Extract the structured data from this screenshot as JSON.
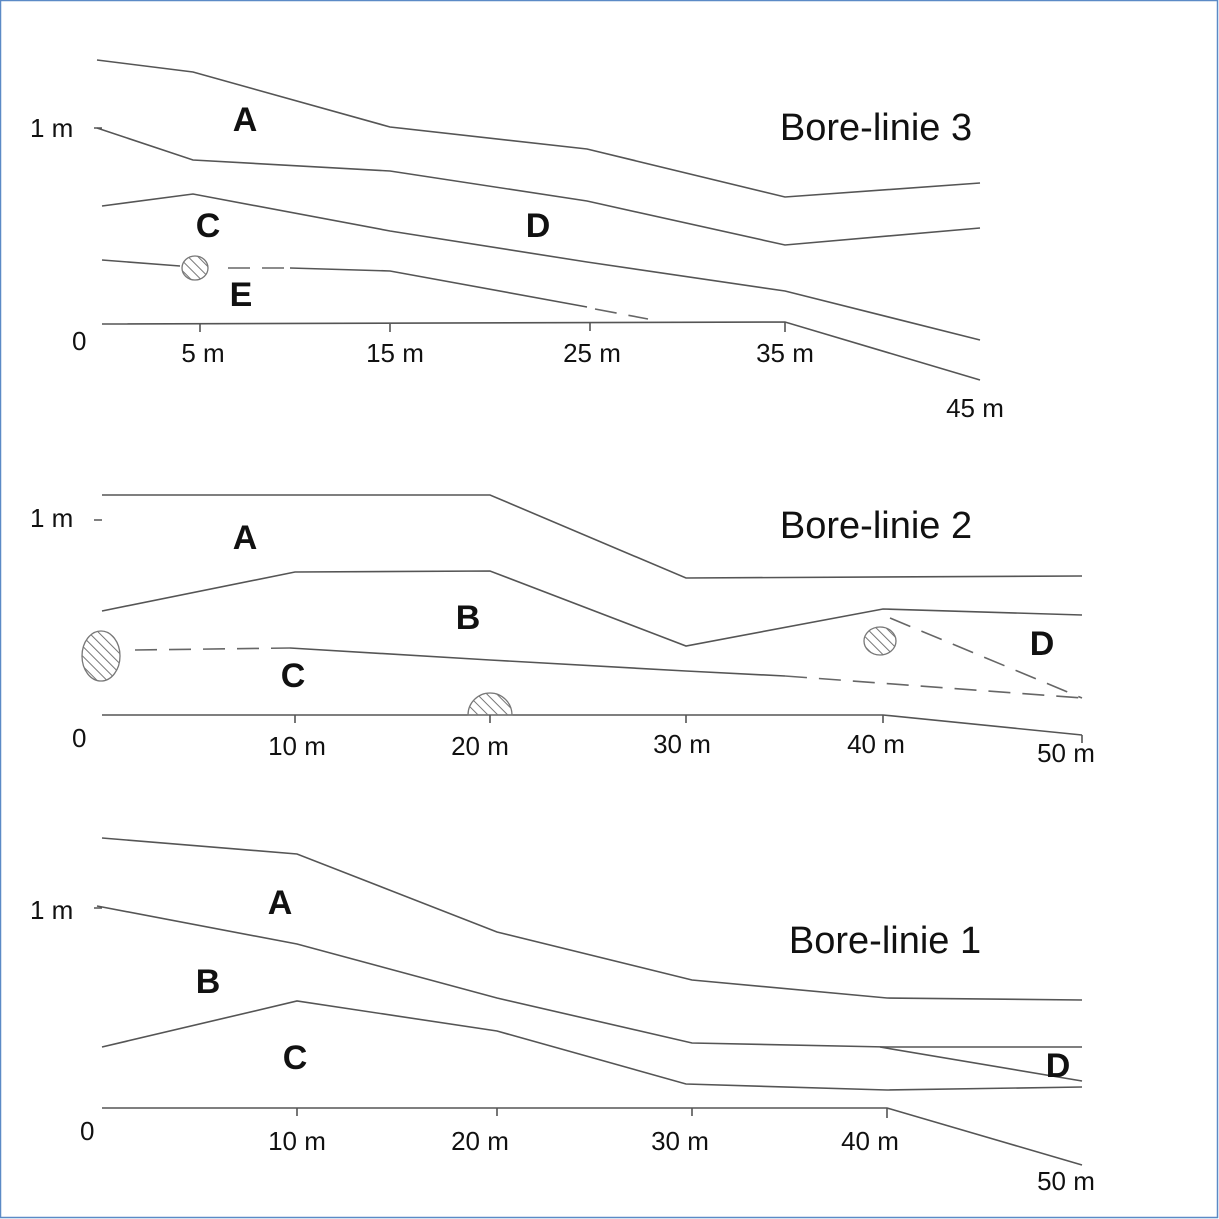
{
  "panels": [
    {
      "title": "Bore-linie 3",
      "y_labels": [
        "1 m",
        "0"
      ],
      "x_labels": [
        "5 m",
        "15 m",
        "25 m",
        "35 m",
        "45 m"
      ],
      "layers": [
        "A",
        "C",
        "D",
        "E"
      ]
    },
    {
      "title": "Bore-linie 2",
      "y_labels": [
        "1 m",
        "0"
      ],
      "x_labels": [
        "10 m",
        "20 m",
        "30 m",
        "40 m",
        "50 m"
      ],
      "layers": [
        "A",
        "B",
        "C",
        "D"
      ]
    },
    {
      "title": "Bore-linie 1",
      "y_labels": [
        "1 m",
        "0"
      ],
      "x_labels": [
        "10 m",
        "20 m",
        "30 m",
        "40 m",
        "50 m"
      ],
      "layers": [
        "A",
        "B",
        "C",
        "D"
      ]
    }
  ]
}
